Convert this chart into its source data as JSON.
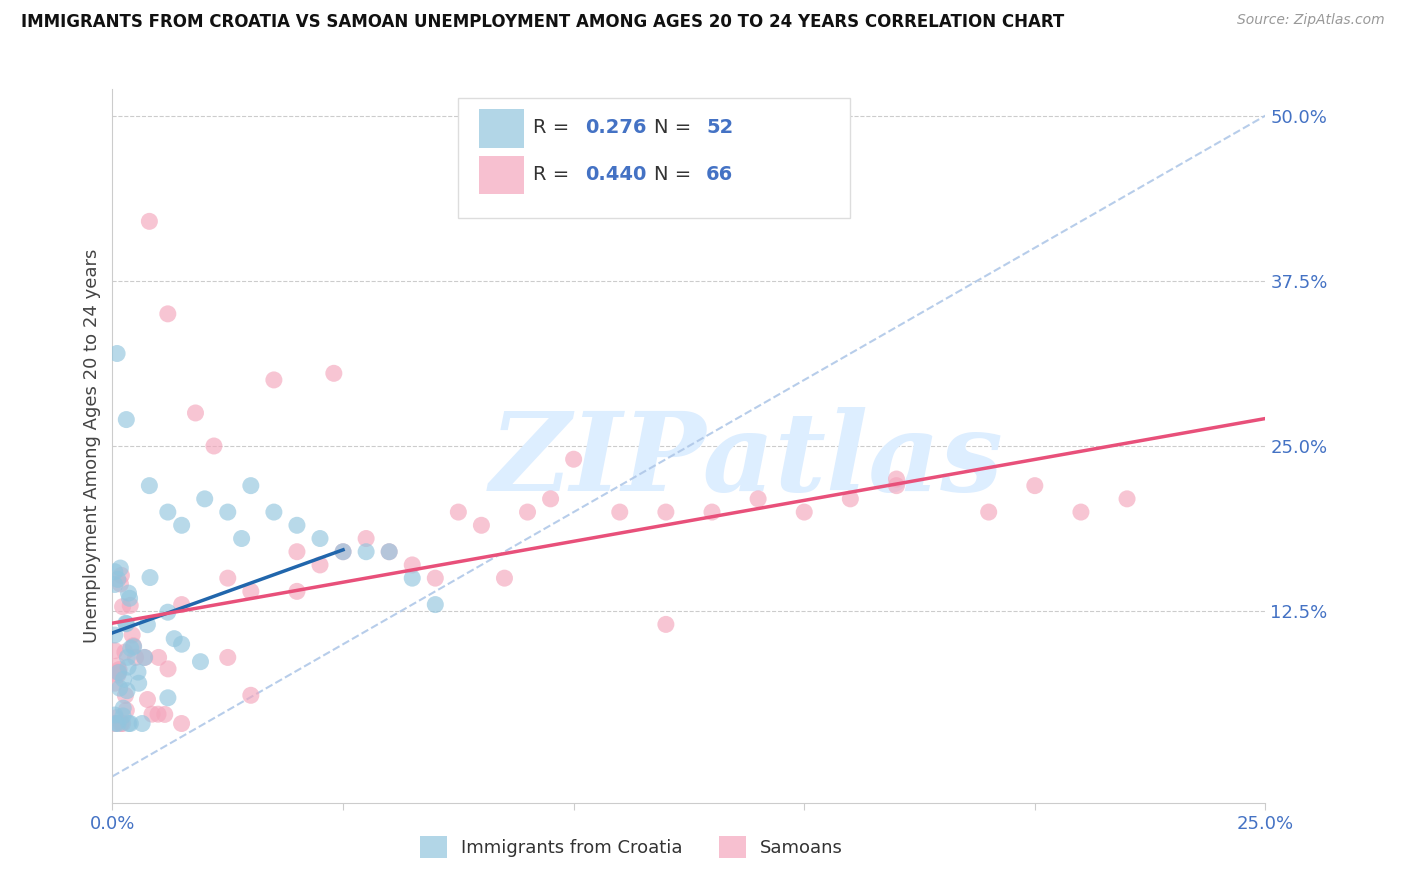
{
  "title": "IMMIGRANTS FROM CROATIA VS SAMOAN UNEMPLOYMENT AMONG AGES 20 TO 24 YEARS CORRELATION CHART",
  "source": "Source: ZipAtlas.com",
  "ylabel": "Unemployment Among Ages 20 to 24 years",
  "xlim": [
    0.0,
    0.25
  ],
  "ylim": [
    -0.02,
    0.52
  ],
  "legend_blue_r_val": "0.276",
  "legend_blue_n_val": "52",
  "legend_pink_r_val": "0.440",
  "legend_pink_n_val": "66",
  "label_blue": "Immigrants from Croatia",
  "label_pink": "Samoans",
  "blue_color": "#92c5de",
  "pink_color": "#f4a6bc",
  "blue_line_color": "#2166ac",
  "pink_line_color": "#e8507a",
  "diag_color": "#b0c8e8",
  "grid_color": "#cccccc",
  "tick_color": "#4472c4",
  "watermark_color": "#ddeeff",
  "watermark": "ZIPatlas"
}
